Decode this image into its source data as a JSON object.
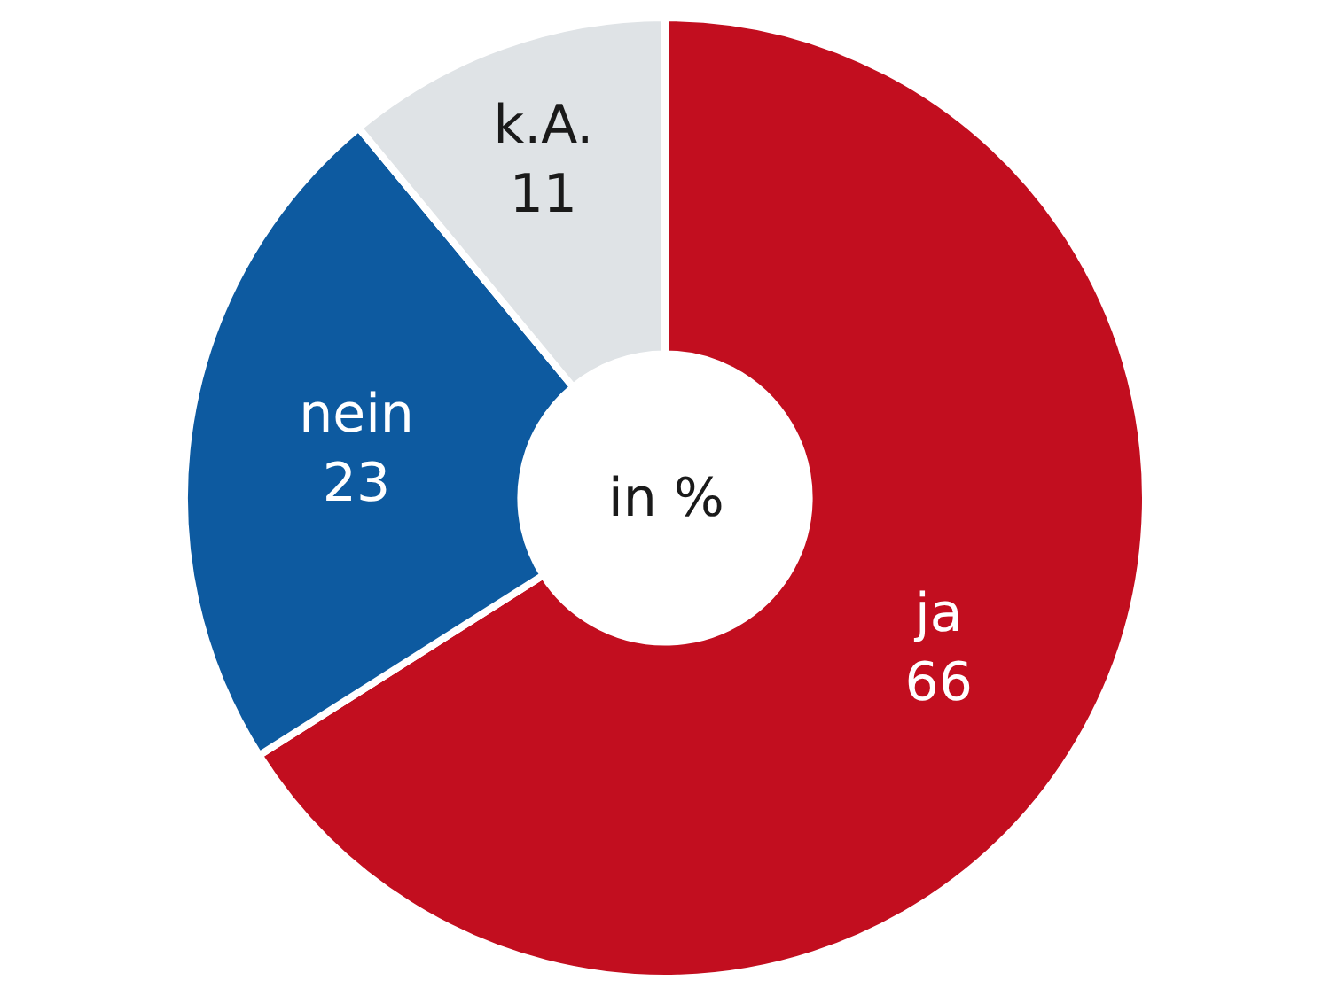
{
  "chart_data": {
    "type": "donut",
    "categories": [
      "ja",
      "nein",
      "k.A."
    ],
    "values": [
      66,
      23,
      11
    ],
    "colors": [
      "#c20e1f",
      "#0d5aa0",
      "#dfe3e6"
    ],
    "data_labels": true,
    "annotations": [
      "in %"
    ],
    "legend": false
  }
}
